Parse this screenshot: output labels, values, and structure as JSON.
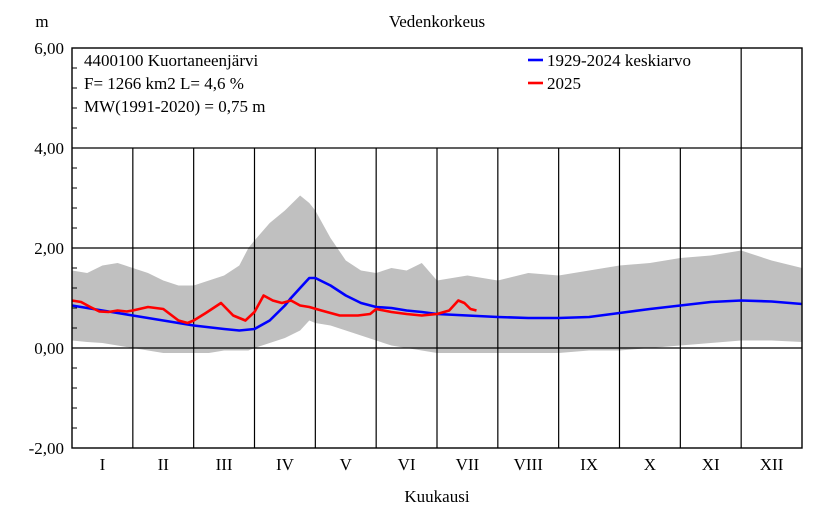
{
  "chart_data": {
    "type": "line",
    "title": "Vedenkorkeus",
    "ylabel": "m",
    "xlabel": "Kuukausi",
    "ylim": [
      -2,
      6
    ],
    "yticks": [
      "6,00",
      "4,00",
      "2,00",
      "0,00",
      "-2,00"
    ],
    "yticks_values": [
      6,
      4,
      2,
      0,
      -2
    ],
    "months": [
      "I",
      "II",
      "III",
      "IV",
      "V",
      "VI",
      "VII",
      "VIII",
      "IX",
      "X",
      "XI",
      "XII"
    ],
    "info": [
      "4400100 Kuortaneenjärvi",
      "F=   1266 km2 L=  4,6 %",
      "MW(1991-2020) = 0,75 m"
    ],
    "legend": [
      "1929-2024 keskiarvo",
      "2025"
    ],
    "legend_position": "top-right",
    "grid": true,
    "colors": {
      "average": "#0000ff",
      "year2025": "#ff0000",
      "range": "#c0c0c0"
    },
    "range_band": {
      "x": [
        0,
        0.25,
        0.5,
        0.75,
        1.0,
        1.25,
        1.5,
        1.75,
        2.0,
        2.25,
        2.5,
        2.75,
        2.9,
        3.0,
        3.25,
        3.5,
        3.75,
        3.9,
        4.0,
        4.25,
        4.5,
        4.75,
        5.0,
        5.25,
        5.5,
        5.75,
        6.0,
        6.5,
        7.0,
        7.5,
        8.0,
        8.5,
        9.0,
        9.5,
        10.0,
        10.5,
        11.0,
        11.5,
        12.0
      ],
      "upper": [
        1.55,
        1.5,
        1.65,
        1.7,
        1.6,
        1.5,
        1.35,
        1.25,
        1.25,
        1.35,
        1.45,
        1.65,
        2.0,
        2.15,
        2.5,
        2.75,
        3.05,
        2.9,
        2.75,
        2.2,
        1.75,
        1.55,
        1.5,
        1.6,
        1.55,
        1.7,
        1.35,
        1.45,
        1.35,
        1.5,
        1.45,
        1.55,
        1.65,
        1.7,
        1.8,
        1.85,
        1.95,
        1.75,
        1.6
      ],
      "lower": [
        0.15,
        0.12,
        0.1,
        0.05,
        0.0,
        -0.05,
        -0.1,
        -0.1,
        -0.1,
        -0.1,
        -0.05,
        -0.05,
        -0.05,
        0.0,
        0.1,
        0.2,
        0.35,
        0.55,
        0.5,
        0.45,
        0.35,
        0.25,
        0.15,
        0.05,
        0.0,
        -0.05,
        -0.1,
        -0.1,
        -0.1,
        -0.1,
        -0.1,
        -0.05,
        -0.05,
        0.0,
        0.05,
        0.1,
        0.15,
        0.15,
        0.12
      ]
    },
    "series": [
      {
        "name": "1929-2024 keskiarvo",
        "x": [
          0,
          0.5,
          1.0,
          1.5,
          2.0,
          2.5,
          2.75,
          3.0,
          3.25,
          3.5,
          3.6,
          3.75,
          3.9,
          4.0,
          4.25,
          4.5,
          4.75,
          5.0,
          5.25,
          5.5,
          5.75,
          6.0,
          6.5,
          7.0,
          7.5,
          8.0,
          8.5,
          9.0,
          9.5,
          10.0,
          10.5,
          11.0,
          11.5,
          12.0
        ],
        "y": [
          0.85,
          0.75,
          0.65,
          0.55,
          0.45,
          0.38,
          0.35,
          0.38,
          0.55,
          0.85,
          1.0,
          1.2,
          1.4,
          1.4,
          1.25,
          1.05,
          0.9,
          0.82,
          0.8,
          0.75,
          0.72,
          0.68,
          0.65,
          0.62,
          0.6,
          0.6,
          0.62,
          0.7,
          0.78,
          0.85,
          0.92,
          0.95,
          0.93,
          0.88
        ]
      },
      {
        "name": "2025",
        "x": [
          0,
          0.15,
          0.3,
          0.45,
          0.6,
          0.75,
          0.9,
          1.0,
          1.25,
          1.5,
          1.75,
          1.9,
          2.0,
          2.2,
          2.45,
          2.65,
          2.85,
          3.0,
          3.15,
          3.3,
          3.45,
          3.6,
          3.75,
          3.9,
          4.1,
          4.4,
          4.7,
          4.9,
          5.0,
          5.25,
          5.5,
          5.75,
          6.0,
          6.2,
          6.35,
          6.45,
          6.55,
          6.65
        ],
        "y": [
          0.95,
          0.92,
          0.82,
          0.73,
          0.72,
          0.75,
          0.73,
          0.75,
          0.82,
          0.78,
          0.55,
          0.5,
          0.55,
          0.7,
          0.9,
          0.65,
          0.55,
          0.72,
          1.05,
          0.95,
          0.9,
          0.95,
          0.85,
          0.82,
          0.75,
          0.65,
          0.65,
          0.68,
          0.78,
          0.72,
          0.68,
          0.65,
          0.68,
          0.75,
          0.95,
          0.9,
          0.78,
          0.75
        ]
      }
    ]
  }
}
